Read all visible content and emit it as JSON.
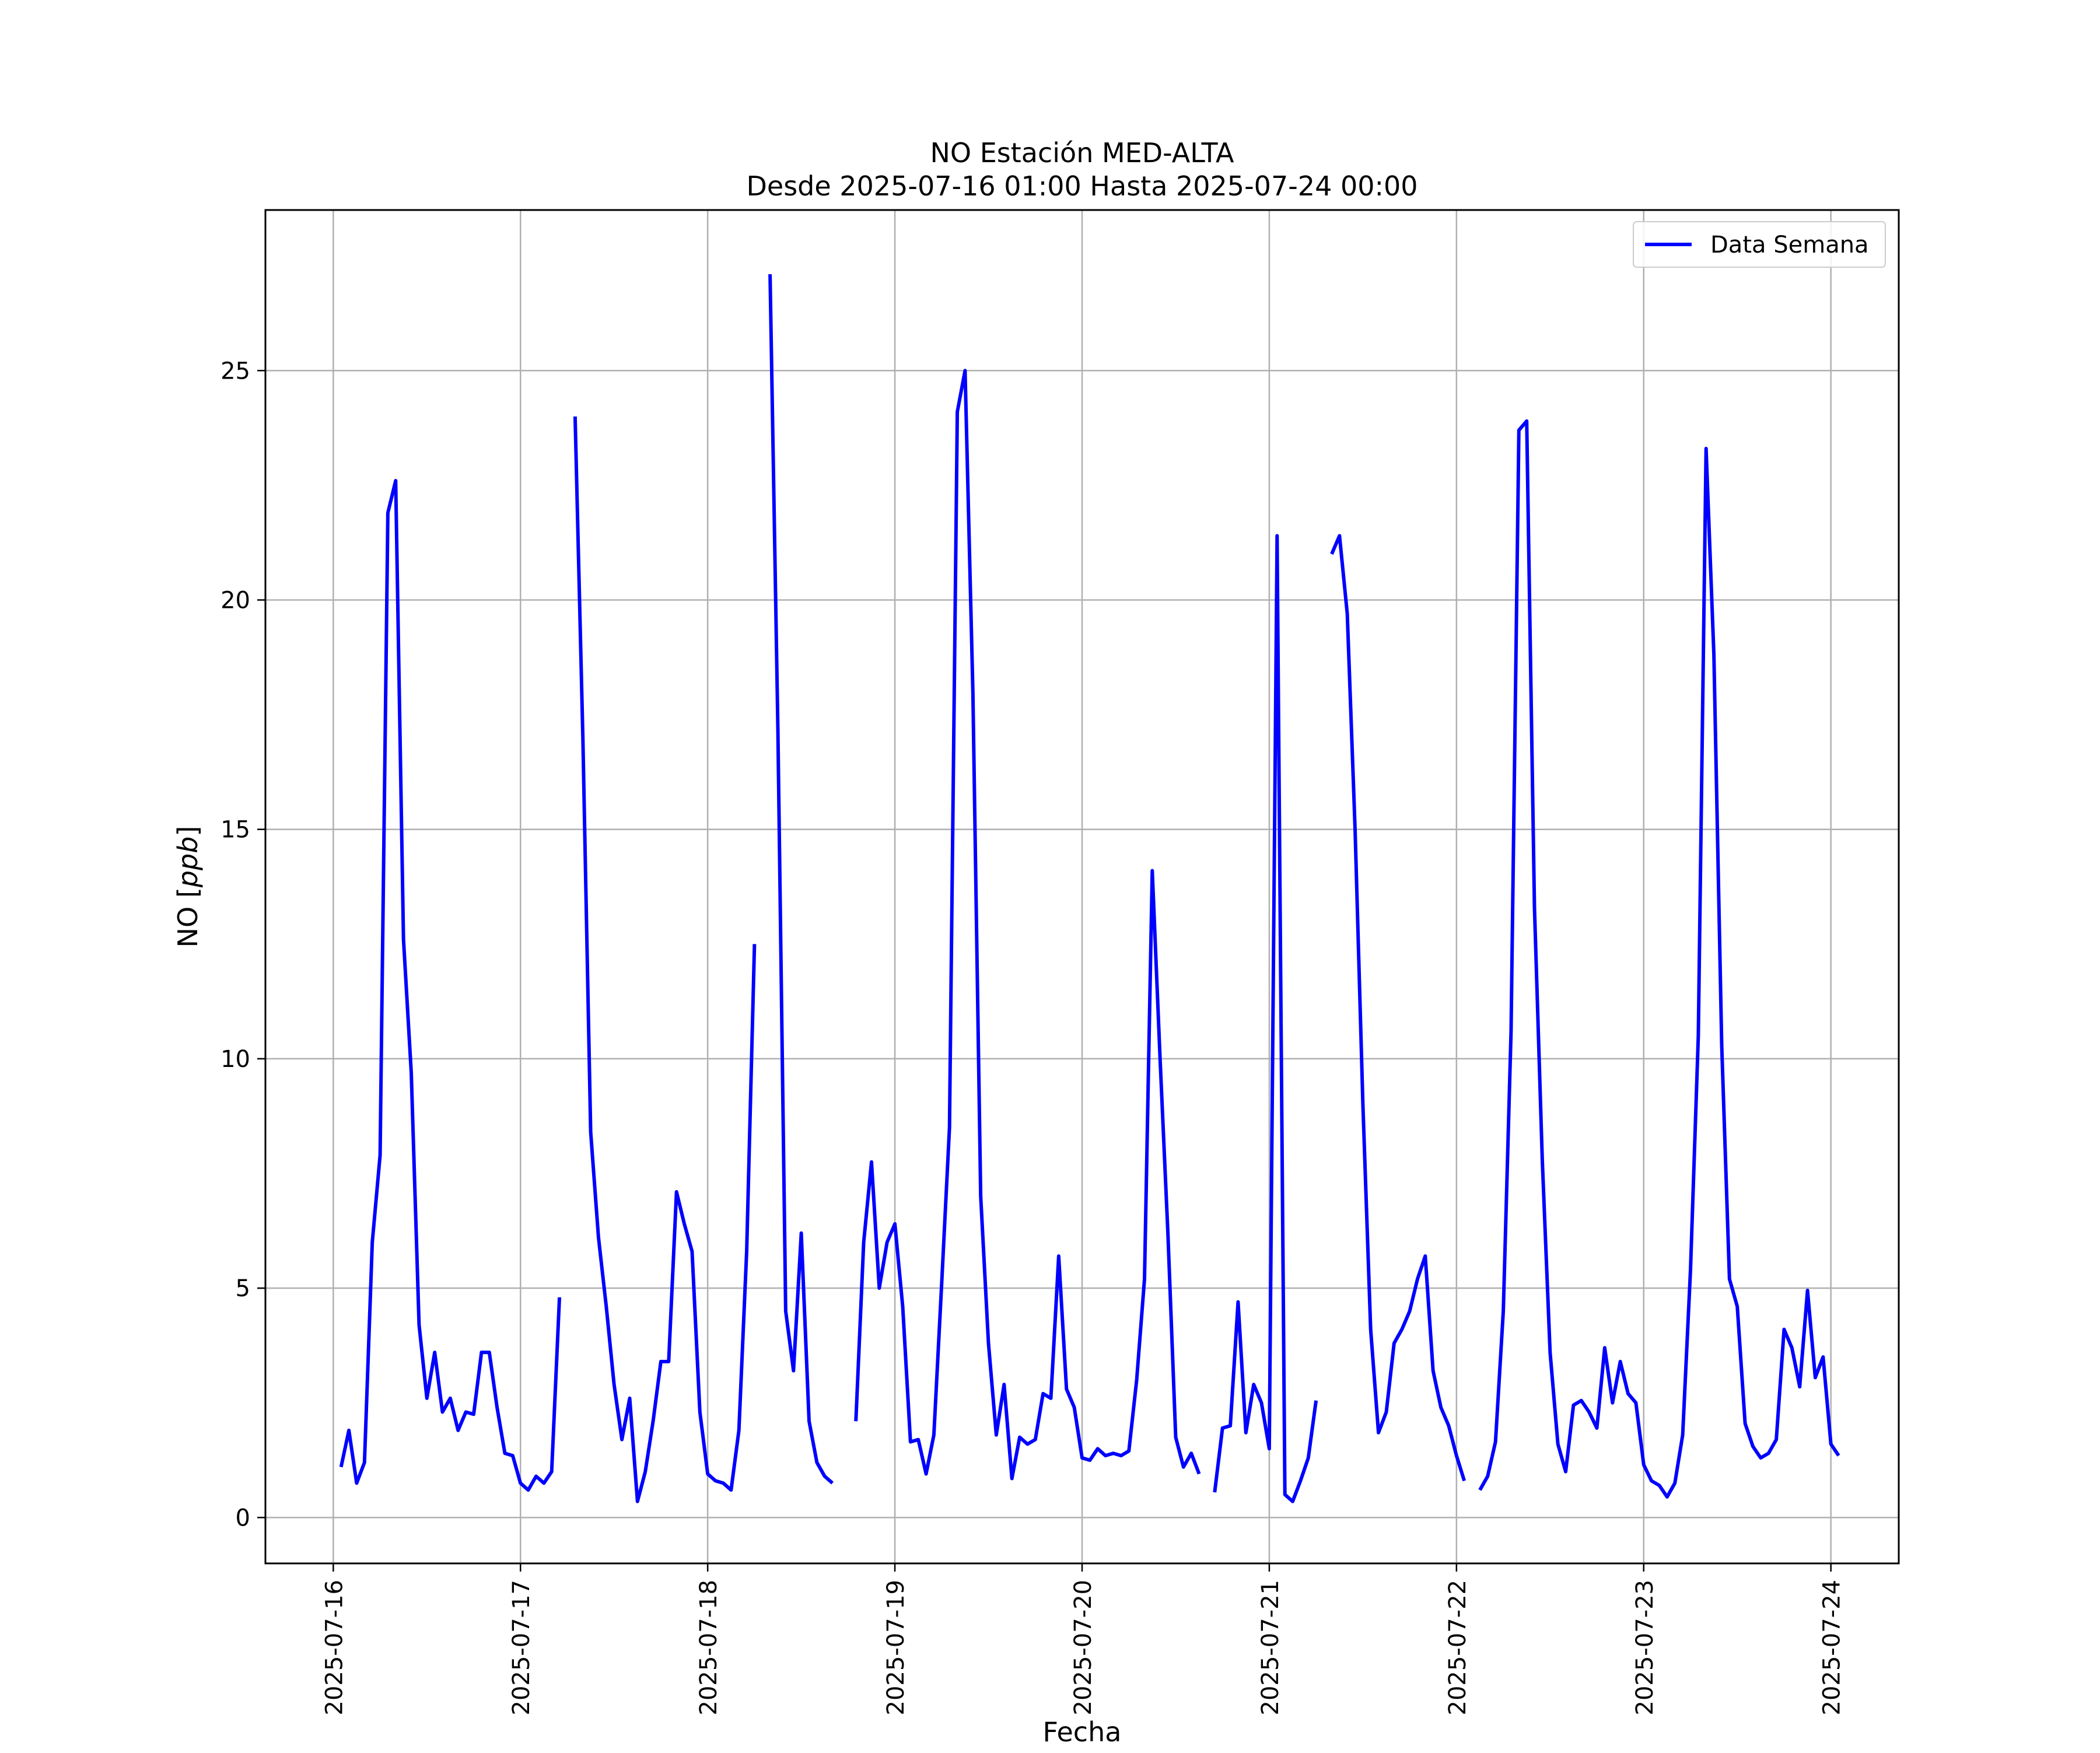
{
  "chart_data": {
    "type": "line",
    "title": "NO Estación MED-ALTA",
    "subtitle": "Desde 2025-07-16 01:00 Hasta 2025-07-24 00:00",
    "xlabel": "Fecha",
    "ylabel_main": "NO [",
    "ylabel_unit": "ppb",
    "ylabel_close": "]",
    "xlim": [
      "2025-07-15 15:18",
      "2025-07-24 08:42"
    ],
    "ylim": [
      -1.0,
      28.5
    ],
    "grid": true,
    "legend_position": "top-right",
    "x_ticks": [
      "2025-07-16",
      "2025-07-17",
      "2025-07-18",
      "2025-07-19",
      "2025-07-20",
      "2025-07-21",
      "2025-07-22",
      "2025-07-23",
      "2025-07-24"
    ],
    "y_ticks": [
      0,
      5,
      10,
      15,
      20,
      25
    ],
    "series": [
      {
        "name": "Data Semana",
        "color": "#0000ff",
        "start": "2025-07-16 01:00",
        "step_hours": 1,
        "values": [
          1.1,
          1.9,
          0.75,
          1.2,
          6.0,
          7.9,
          21.9,
          22.6,
          12.6,
          9.7,
          4.2,
          2.6,
          3.6,
          2.3,
          2.6,
          1.9,
          2.3,
          2.25,
          3.6,
          3.6,
          2.4,
          1.4,
          1.35,
          0.75,
          0.6,
          0.9,
          0.75,
          1.0,
          4.8,
          null,
          24.0,
          17.0,
          8.4,
          6.1,
          4.6,
          2.9,
          1.7,
          2.6,
          0.35,
          1.0,
          2.1,
          3.4,
          3.4,
          7.1,
          6.4,
          5.8,
          2.3,
          0.95,
          0.8,
          0.75,
          0.6,
          1.9,
          5.8,
          12.5,
          null,
          27.1,
          17.2,
          4.5,
          3.2,
          6.2,
          2.1,
          1.2,
          0.9,
          0.75,
          null,
          null,
          2.1,
          6.0,
          7.75,
          5.0,
          6.0,
          6.4,
          4.6,
          1.65,
          1.7,
          0.95,
          1.8,
          5.1,
          8.5,
          24.1,
          25.0,
          18.0,
          7.0,
          3.8,
          1.8,
          2.9,
          0.85,
          1.75,
          1.6,
          1.7,
          2.7,
          2.6,
          5.7,
          2.8,
          2.4,
          1.3,
          1.25,
          1.5,
          1.35,
          1.4,
          1.35,
          1.45,
          3.0,
          5.2,
          14.1,
          10.0,
          6.2,
          1.75,
          1.1,
          1.4,
          0.95,
          null,
          0.55,
          1.95,
          2.0,
          4.7,
          1.85,
          2.9,
          2.5,
          1.5,
          21.4,
          0.5,
          0.35,
          0.8,
          1.3,
          2.55,
          null,
          21.0,
          21.4,
          19.7,
          15.0,
          9.0,
          4.1,
          1.85,
          2.3,
          3.8,
          4.1,
          4.5,
          5.2,
          5.7,
          3.2,
          2.4,
          2.0,
          1.35,
          0.8,
          null,
          0.6,
          0.9,
          1.65,
          4.5,
          10.6,
          23.7,
          23.9,
          13.3,
          7.8,
          3.6,
          1.6,
          1.0,
          2.45,
          2.55,
          2.3,
          1.95,
          3.7,
          2.5,
          3.4,
          2.7,
          2.5,
          1.15,
          0.8,
          0.7,
          0.45,
          0.75,
          1.8,
          5.4,
          10.5,
          23.3,
          18.8,
          10.3,
          5.2,
          4.6,
          2.05,
          1.55,
          1.3,
          1.4,
          1.7,
          4.1,
          3.7,
          2.85,
          4.95,
          3.05,
          3.5,
          1.6,
          1.35
        ]
      }
    ]
  }
}
